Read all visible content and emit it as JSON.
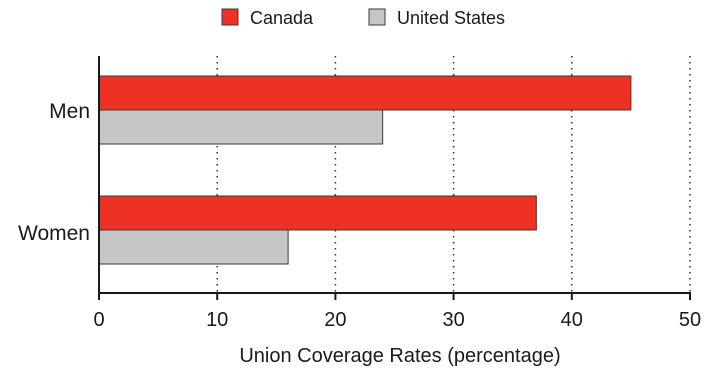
{
  "chart_data": {
    "type": "bar",
    "orientation": "horizontal",
    "categories": [
      "Men",
      "Women"
    ],
    "series": [
      {
        "name": "Canada",
        "values": [
          45,
          37
        ],
        "color": "#ee3124"
      },
      {
        "name": "United States",
        "values": [
          24,
          16
        ],
        "color": "#c6c6c8"
      }
    ],
    "xlabel": "Union Coverage Rates (percentage)",
    "ylabel": "",
    "xlim": [
      0,
      50
    ],
    "x_ticks": [
      0,
      10,
      20,
      30,
      40,
      50
    ],
    "grid": "vertical dotted",
    "legend_position": "top-center"
  }
}
